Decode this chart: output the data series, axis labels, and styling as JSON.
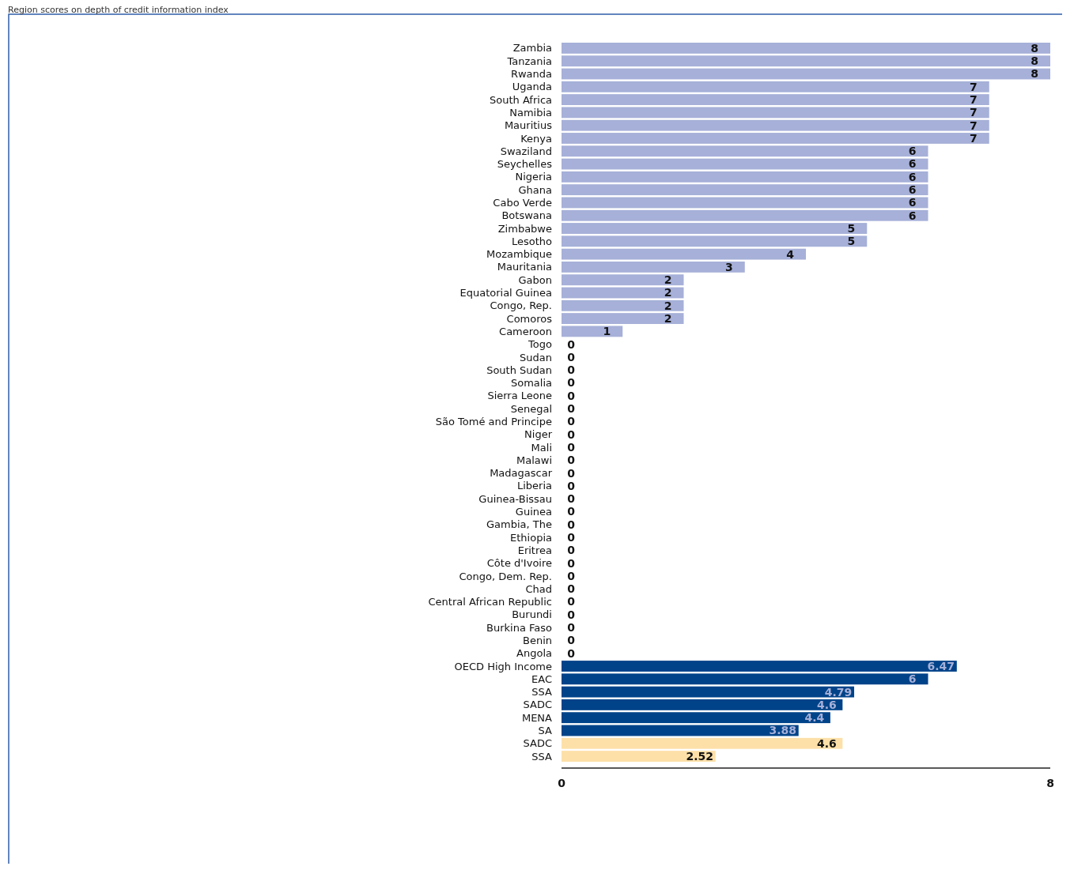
{
  "chart_data": {
    "type": "bar",
    "orientation": "horizontal",
    "title": "Region scores on depth of credit information index",
    "categories": [
      "Zambia",
      "Tanzania",
      "Rwanda",
      "Uganda",
      "South Africa",
      "Namibia",
      "Mauritius",
      "Kenya",
      "Swaziland",
      "Seychelles",
      "Nigeria",
      "Ghana",
      "Cabo Verde",
      "Botswana",
      "Zimbabwe",
      "Lesotho",
      "Mozambique",
      "Mauritania",
      "Gabon",
      "Equatorial Guinea",
      "Congo, Rep.",
      "Comoros",
      "Cameroon",
      "Togo",
      "Sudan",
      "South Sudan",
      "Somalia",
      "Sierra Leone",
      "Senegal",
      "São Tomé and Principe",
      "Niger",
      "Mali",
      "Malawi",
      "Madagascar",
      "Liberia",
      "Guinea-Bissau",
      "Guinea",
      "Gambia, The",
      "Ethiopia",
      "Eritrea",
      "Côte d'Ivoire",
      "Congo, Dem. Rep.",
      "Chad",
      "Central African Republic",
      "Burundi",
      "Burkina Faso",
      "Benin",
      "Angola",
      "OECD High Income",
      "EAC",
      "SSA",
      "SADC",
      "MENA",
      "SA",
      "SADC",
      "SSA"
    ],
    "values": [
      8,
      8,
      8,
      7,
      7,
      7,
      7,
      7,
      6,
      6,
      6,
      6,
      6,
      6,
      5,
      5,
      4,
      3,
      2,
      2,
      2,
      2,
      1,
      0,
      0,
      0,
      0,
      0,
      0,
      0,
      0,
      0,
      0,
      0,
      0,
      0,
      0,
      0,
      0,
      0,
      0,
      0,
      0,
      0,
      0,
      0,
      0,
      0,
      6.47,
      6,
      4.79,
      4.6,
      4.4,
      3.88,
      4.6,
      2.52
    ],
    "colors": [
      "#a6b0d8",
      "#a6b0d8",
      "#a6b0d8",
      "#a6b0d8",
      "#a6b0d8",
      "#a6b0d8",
      "#a6b0d8",
      "#a6b0d8",
      "#a6b0d8",
      "#a6b0d8",
      "#a6b0d8",
      "#a6b0d8",
      "#a6b0d8",
      "#a6b0d8",
      "#a6b0d8",
      "#a6b0d8",
      "#a6b0d8",
      "#a6b0d8",
      "#a6b0d8",
      "#a6b0d8",
      "#a6b0d8",
      "#a6b0d8",
      "#a6b0d8",
      "#a6b0d8",
      "#a6b0d8",
      "#a6b0d8",
      "#a6b0d8",
      "#a6b0d8",
      "#a6b0d8",
      "#a6b0d8",
      "#a6b0d8",
      "#a6b0d8",
      "#a6b0d8",
      "#a6b0d8",
      "#a6b0d8",
      "#a6b0d8",
      "#a6b0d8",
      "#a6b0d8",
      "#a6b0d8",
      "#a6b0d8",
      "#a6b0d8",
      "#a6b0d8",
      "#a6b0d8",
      "#a6b0d8",
      "#a6b0d8",
      "#a6b0d8",
      "#a6b0d8",
      "#a6b0d8",
      "#004389",
      "#004389",
      "#004389",
      "#004389",
      "#004389",
      "#004389",
      "#fde0a8",
      "#fde0a8"
    ],
    "xlim": [
      0,
      8
    ],
    "xticks": [
      0,
      8
    ],
    "data_labels": true
  }
}
